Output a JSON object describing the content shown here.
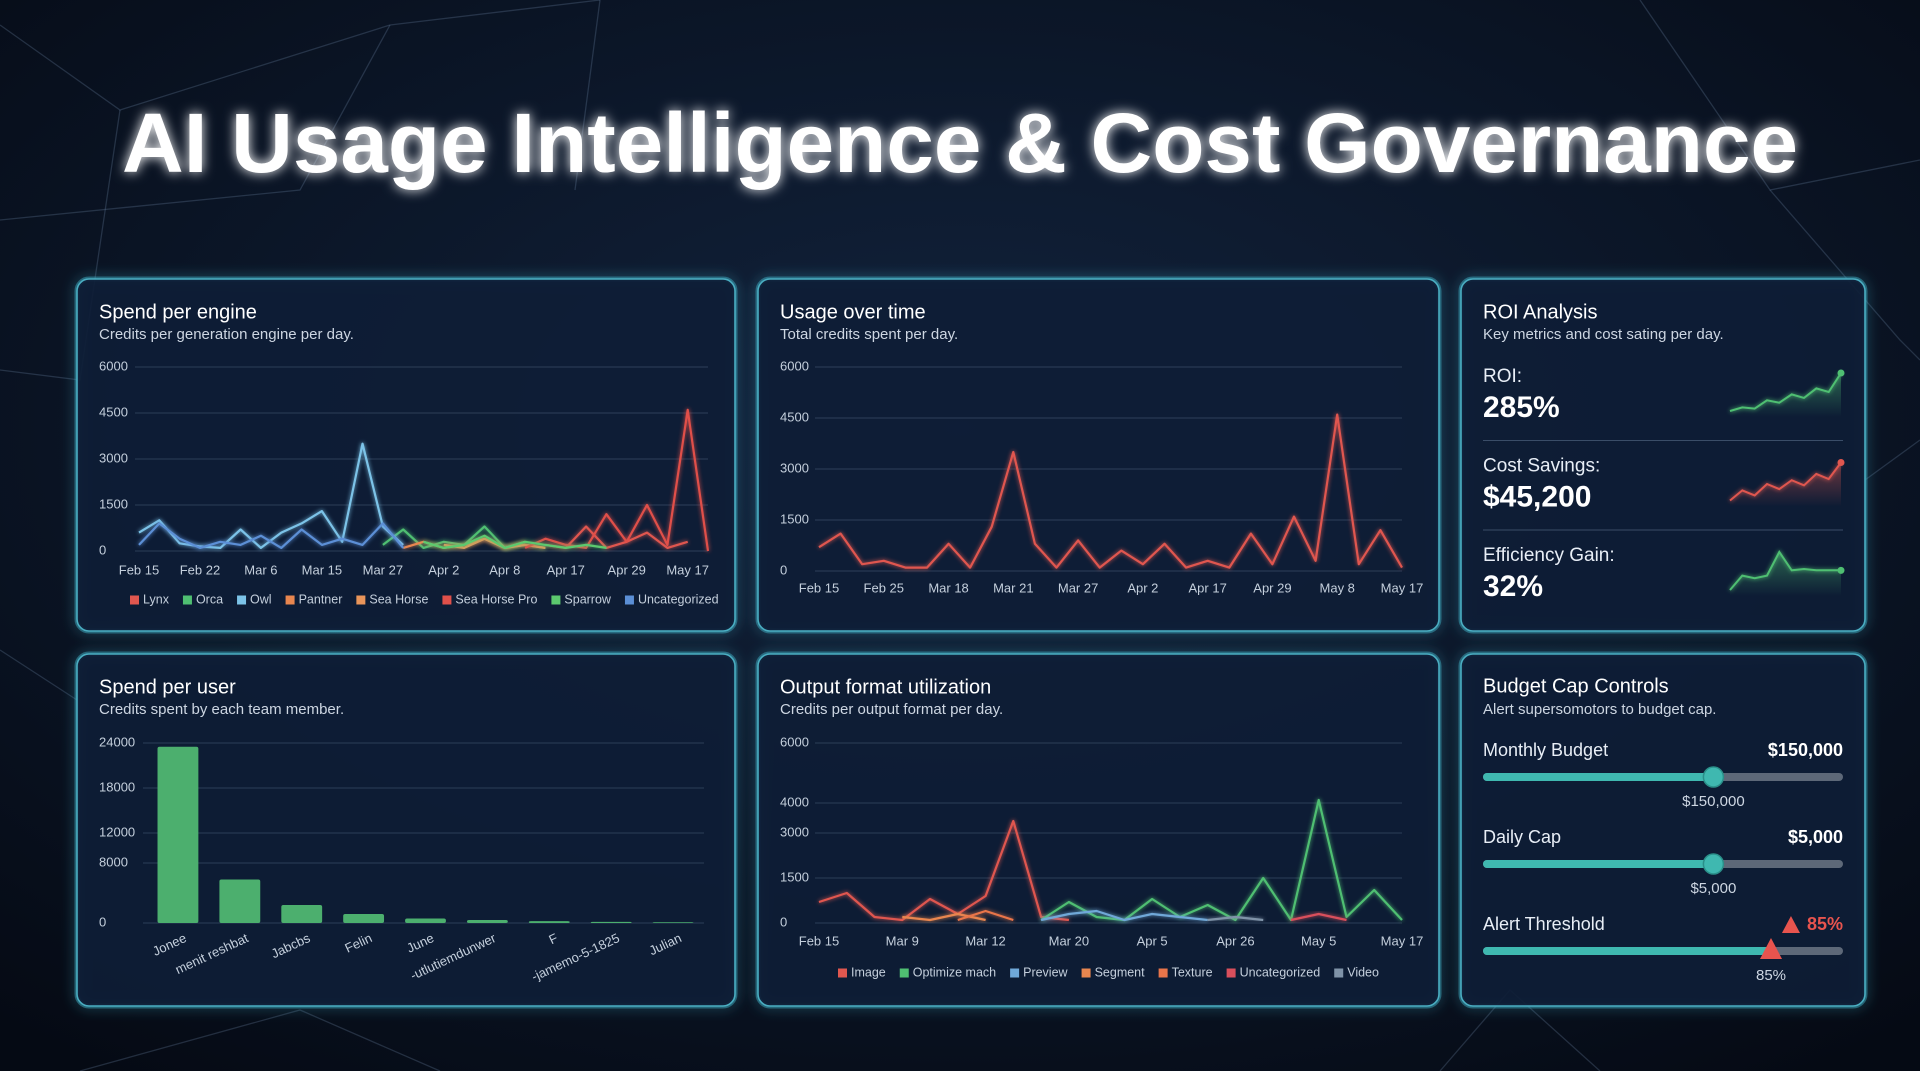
{
  "title": "AI Usage Intelligence & Cost Governance",
  "chart_data": [
    {
      "type": "line",
      "title": "Spend per engine",
      "subtitle": "Credits per generation engine per day.",
      "categories": [
        "Feb 15",
        null,
        null,
        "Feb 22",
        null,
        null,
        "Mar 6",
        null,
        null,
        "Mar 15",
        null,
        null,
        "Mar 27",
        null,
        null,
        "Apr 2",
        null,
        null,
        "Apr 8",
        null,
        null,
        "Apr 17",
        null,
        null,
        "Apr 29",
        null,
        null,
        "May 17",
        null
      ],
      "series": [
        {
          "name": "Lynx",
          "color": "#e0574f",
          "values": [
            null,
            null,
            null,
            null,
            null,
            null,
            null,
            null,
            null,
            null,
            null,
            null,
            null,
            null,
            null,
            null,
            null,
            null,
            null,
            null,
            200,
            100,
            800,
            100,
            300,
            600,
            100,
            300,
            null
          ]
        },
        {
          "name": "Orca",
          "color": "#4fbf72",
          "values": [
            null,
            null,
            null,
            null,
            null,
            null,
            null,
            null,
            null,
            null,
            null,
            null,
            200,
            700,
            100,
            300,
            200,
            800,
            100,
            200,
            100,
            null,
            null,
            null,
            null,
            null,
            null,
            null,
            null
          ]
        },
        {
          "name": "Owl",
          "color": "#7cc3e8",
          "values": [
            600,
            1000,
            250,
            150,
            100,
            700,
            100,
            600,
            900,
            1300,
            300,
            3500,
            800,
            200,
            null,
            null,
            null,
            null,
            null,
            null,
            null,
            null,
            null,
            null,
            null,
            null,
            null,
            null,
            null
          ]
        },
        {
          "name": "Pantner",
          "color": "#e8864f",
          "values": [
            null,
            null,
            null,
            null,
            null,
            null,
            null,
            null,
            null,
            null,
            null,
            null,
            null,
            100,
            300,
            100,
            200,
            400,
            100,
            300,
            null,
            null,
            null,
            null,
            null,
            null,
            null,
            null,
            null
          ]
        },
        {
          "name": "Sea Horse",
          "color": "#e9955a",
          "values": [
            null,
            null,
            null,
            null,
            null,
            null,
            null,
            null,
            null,
            null,
            null,
            null,
            null,
            null,
            null,
            200,
            100,
            400,
            100,
            200,
            100,
            null,
            null,
            null,
            null,
            null,
            null,
            null,
            null
          ]
        },
        {
          "name": "Sea Horse Pro",
          "color": "#e0504a",
          "values": [
            null,
            null,
            null,
            null,
            null,
            null,
            null,
            null,
            null,
            null,
            null,
            null,
            null,
            null,
            null,
            null,
            null,
            null,
            null,
            100,
            400,
            200,
            100,
            1200,
            300,
            1500,
            200,
            4600,
            0
          ]
        },
        {
          "name": "Sparrow",
          "color": "#5cc96e",
          "values": [
            null,
            null,
            null,
            null,
            null,
            null,
            null,
            null,
            null,
            null,
            null,
            null,
            null,
            null,
            300,
            100,
            200,
            500,
            100,
            300,
            200,
            100,
            200,
            100,
            null,
            null,
            null,
            null,
            null
          ]
        },
        {
          "name": "Uncategorized",
          "color": "#5b8fd6",
          "values": [
            200,
            900,
            400,
            100,
            300,
            200,
            500,
            100,
            700,
            200,
            400,
            200,
            900,
            100,
            null,
            null,
            null,
            null,
            null,
            null,
            null,
            null,
            null,
            null,
            null,
            null,
            null,
            null,
            null
          ]
        }
      ],
      "ylim": [
        0,
        6000
      ],
      "yticks": [
        0,
        1500,
        3000,
        4500,
        6000
      ],
      "grid": true,
      "legend": "bottom"
    },
    {
      "type": "line",
      "title": "Usage over time",
      "subtitle": "Total credits spent per day.",
      "categories": [
        "Feb 15",
        null,
        null,
        "Feb 25",
        null,
        null,
        "Mar 18",
        null,
        null,
        "Mar 21",
        null,
        null,
        "Mar 27",
        null,
        null,
        "Apr 2",
        null,
        null,
        "Apr 17",
        null,
        null,
        "Apr 29",
        null,
        null,
        "May 8",
        null,
        null,
        "May 17"
      ],
      "series": [
        {
          "color": "#e0574f",
          "values": [
            700,
            1100,
            200,
            300,
            100,
            100,
            800,
            100,
            1300,
            3500,
            800,
            100,
            900,
            100,
            600,
            200,
            800,
            100,
            300,
            100,
            1100,
            200,
            1600,
            300,
            4600,
            200,
            1200,
            100
          ]
        }
      ],
      "ylim": [
        0,
        6000
      ],
      "yticks": [
        0,
        1500,
        3000,
        4500,
        6000
      ],
      "grid": true
    },
    {
      "type": "bar",
      "title": "Spend per user",
      "subtitle": "Credits spent by each team member.",
      "categories": [
        "Jonee",
        "menit reshbat",
        "Jabcbs",
        "Felin",
        "June",
        "-utlutiemdunwer",
        "F",
        "-jamemo-5-1825",
        "Julian"
      ],
      "values": [
        23500,
        5800,
        2400,
        1200,
        600,
        400,
        250,
        150,
        100
      ],
      "color": "#4caf6e",
      "ylim": [
        0,
        24000
      ],
      "yticks": [
        0,
        8000,
        12000,
        18000,
        24000
      ],
      "grid": true
    },
    {
      "type": "line",
      "title": "Output format utilization",
      "subtitle": "Credits per output format per day.",
      "categories": [
        "Feb 15",
        null,
        null,
        "Mar 9",
        null,
        null,
        "Mar 12",
        null,
        null,
        "Mar 20",
        null,
        null,
        "Apr 5",
        null,
        null,
        "Apr 26",
        null,
        null,
        "May 5",
        null,
        null,
        "May 17"
      ],
      "series": [
        {
          "name": "Image",
          "color": "#e0574f",
          "values": [
            700,
            1000,
            200,
            100,
            800,
            300,
            900,
            3400,
            200,
            100,
            null,
            null,
            null,
            null,
            null,
            null,
            null,
            null,
            null,
            null,
            null,
            null
          ]
        },
        {
          "name": "Optimize mach",
          "color": "#4fbf72",
          "values": [
            null,
            null,
            null,
            null,
            null,
            null,
            null,
            null,
            100,
            700,
            200,
            100,
            800,
            200,
            600,
            100,
            1500,
            100,
            4100,
            200,
            1100,
            100
          ]
        },
        {
          "name": "Preview",
          "color": "#6fa8d8",
          "values": [
            null,
            null,
            null,
            null,
            null,
            null,
            null,
            null,
            100,
            300,
            400,
            100,
            300,
            200,
            100,
            null,
            null,
            null,
            null,
            null,
            null,
            null
          ]
        },
        {
          "name": "Segment",
          "color": "#e8864f",
          "values": [
            null,
            null,
            null,
            200,
            100,
            300,
            100,
            null,
            null,
            null,
            null,
            null,
            null,
            null,
            null,
            null,
            null,
            null,
            null,
            null,
            null,
            null
          ]
        },
        {
          "name": "Texture",
          "color": "#e9754a",
          "values": [
            null,
            null,
            null,
            null,
            null,
            100,
            400,
            100,
            null,
            null,
            null,
            null,
            null,
            null,
            null,
            null,
            null,
            null,
            null,
            null,
            null,
            null
          ]
        },
        {
          "name": "Uncategorized",
          "color": "#d94f5c",
          "values": [
            null,
            null,
            null,
            null,
            null,
            null,
            null,
            null,
            null,
            null,
            null,
            null,
            null,
            null,
            null,
            null,
            null,
            100,
            300,
            100,
            null,
            null
          ]
        },
        {
          "name": "Video",
          "color": "#7f93a8",
          "values": [
            null,
            null,
            null,
            null,
            null,
            null,
            null,
            null,
            null,
            null,
            null,
            null,
            null,
            null,
            100,
            200,
            100,
            null,
            null,
            null,
            null,
            null
          ]
        }
      ],
      "ylim": [
        0,
        6000
      ],
      "yticks": [
        0,
        1500,
        3000,
        4000,
        6000
      ],
      "grid": true,
      "legend": "bottom"
    }
  ],
  "roi": {
    "title": "ROI Analysis",
    "subtitle": "Key metrics and cost sating per day.",
    "metrics": [
      {
        "label": "ROI:",
        "value": "285%",
        "color": "#4fbf72",
        "trend": [
          2,
          2.3,
          2.2,
          2.9,
          2.7,
          3.4,
          3.1,
          3.9,
          3.6,
          5.2
        ]
      },
      {
        "label": "Cost Savings:",
        "value": "$45,200",
        "color": "#e0574f",
        "trend": [
          2,
          2.8,
          2.4,
          3.3,
          2.9,
          3.6,
          3.2,
          4.1,
          3.7,
          5.0
        ]
      },
      {
        "label": "Efficiency Gain:",
        "value": "32%",
        "color": "#4fbf72",
        "trend": [
          1.5,
          2.6,
          2.4,
          2.6,
          4.4,
          3.0,
          3.1,
          3.0,
          3.0,
          3.0
        ]
      }
    ]
  },
  "budget": {
    "title": "Budget Cap Controls",
    "subtitle": "Alert supersomotors to budget cap.",
    "controls": [
      {
        "label": "Monthly Budget",
        "value": "$150,000"
      },
      {
        "label": "Daily Cap",
        "value": "$5,000"
      },
      {
        "label": "Alert Threshold",
        "value": "85%",
        "alert": true
      }
    ]
  }
}
